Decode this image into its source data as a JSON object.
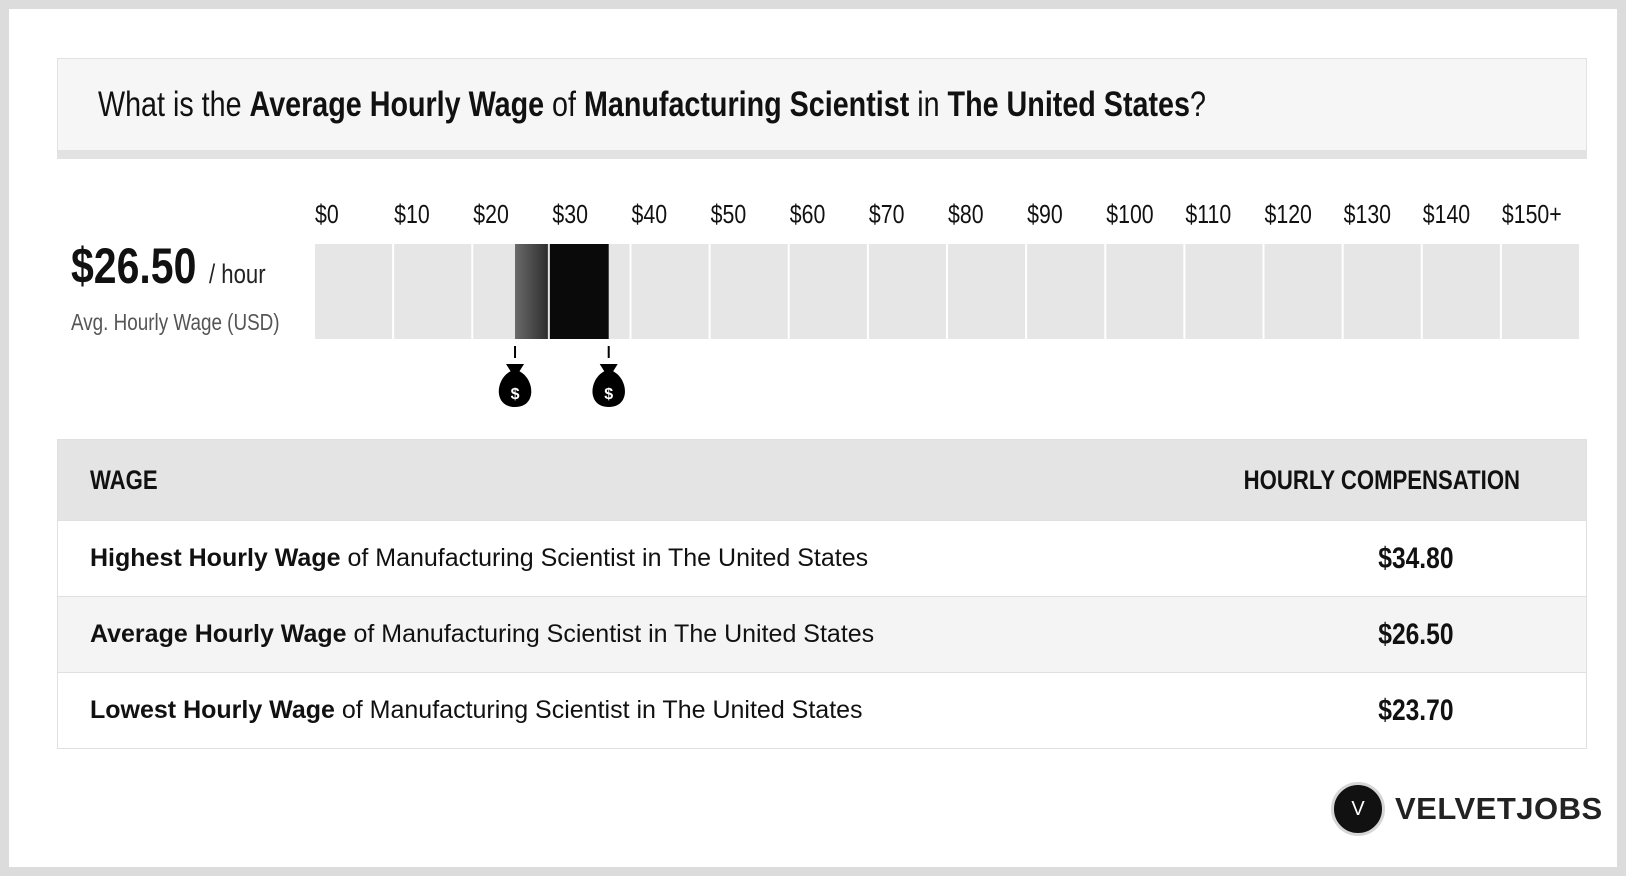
{
  "question": {
    "prefix": "What is the ",
    "metric": "Average Hourly Wage",
    "of": " of ",
    "job": "Manufacturing Scientist",
    "in": " in ",
    "location": "The United States",
    "suffix": "?"
  },
  "summary": {
    "value": "$26.50",
    "unit": "/ hour",
    "caption": "Avg. Hourly Wage (USD)"
  },
  "chart_data": {
    "type": "bar",
    "categories": [
      "$0",
      "$10",
      "$20",
      "$30",
      "$40",
      "$50",
      "$60",
      "$70",
      "$80",
      "$90",
      "$100",
      "$110",
      "$120",
      "$130",
      "$140",
      "$150+"
    ],
    "xlim": [
      0,
      150
    ],
    "range_low": 23.7,
    "average": 26.5,
    "range_high": 34.8,
    "colors": {
      "track": "#e6e6e6",
      "low_band_start": "#6a6a6a",
      "low_band_end": "#2e2e2e",
      "high_band": "#0a0a0a",
      "marker": "#000000"
    },
    "markers": [
      {
        "value": 23.7,
        "icon": "money-bag-icon",
        "symbol": "$"
      },
      {
        "value": 34.8,
        "icon": "money-bag-icon",
        "symbol": "$"
      }
    ]
  },
  "table": {
    "header": {
      "wage": "WAGE",
      "compensation": "HOURLY COMPENSATION"
    },
    "rows": [
      {
        "bold": "Highest Hourly Wage",
        "rest": " of Manufacturing Scientist in The United States",
        "value": "$34.80"
      },
      {
        "bold": "Average Hourly Wage",
        "rest": " of Manufacturing Scientist in The United States",
        "value": "$26.50"
      },
      {
        "bold": "Lowest Hourly Wage",
        "rest": " of Manufacturing Scientist in The United States",
        "value": "$23.70"
      }
    ]
  },
  "brand": {
    "mark": "V",
    "name": "VELVETJOBS"
  }
}
